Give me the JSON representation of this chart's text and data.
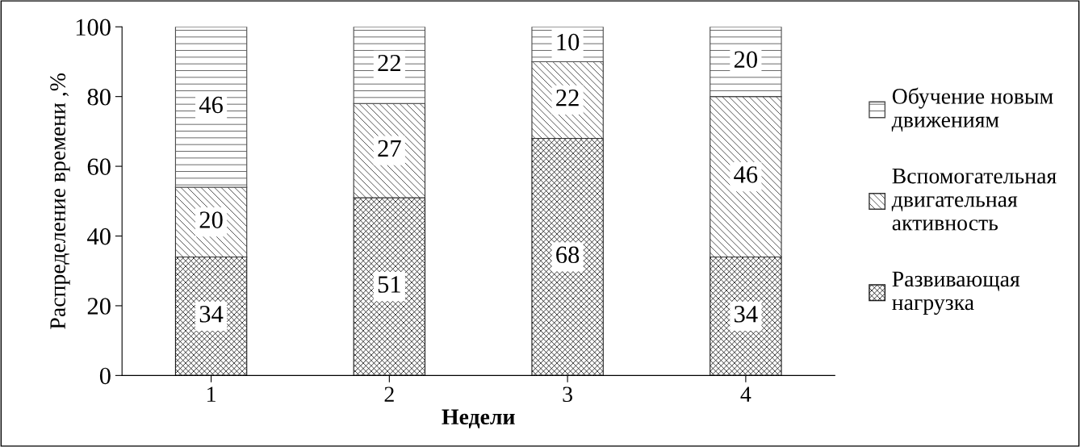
{
  "chart_data": {
    "type": "bar",
    "stacked": true,
    "xlabel": "Недели",
    "ylabel": "Распределение времени ,%",
    "categories": [
      "1",
      "2",
      "3",
      "4"
    ],
    "series": [
      {
        "name": "Развивающая нагрузка",
        "color": "#1a1a1a",
        "values": [
          34,
          51,
          68,
          34
        ]
      },
      {
        "name": "Вспомогательная двигательная активность",
        "color": "#333333",
        "values": [
          20,
          27,
          22,
          46
        ]
      },
      {
        "name": "Обучение новым движениям",
        "color": "#4d4d4d",
        "values": [
          46,
          22,
          10,
          20
        ]
      }
    ],
    "ylim": [
      0,
      100
    ],
    "yticks": [
      0,
      20,
      40,
      60,
      80,
      100
    ],
    "data_labels": true,
    "legend": "right",
    "grid": false
  }
}
